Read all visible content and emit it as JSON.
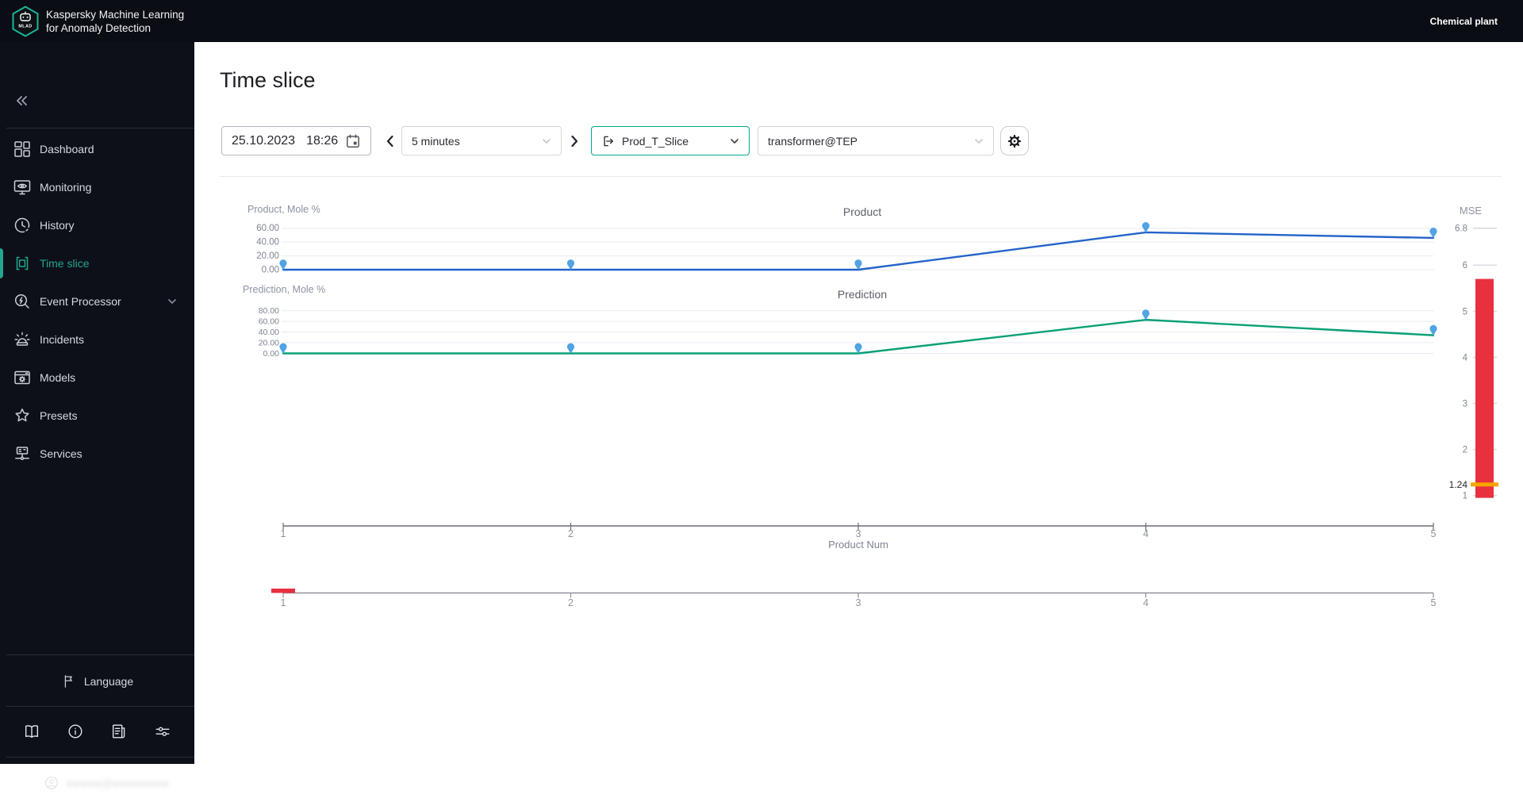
{
  "app": {
    "logo_text": "MLAD",
    "title_line1": "Kaspersky Machine Learning",
    "title_line2": "for Anomaly Detection",
    "tenant": "Chemical plant"
  },
  "page": {
    "title": "Time slice"
  },
  "sidebar": {
    "items": [
      {
        "id": "dashboard",
        "label": "Dashboard",
        "icon": "dashboard",
        "active": false
      },
      {
        "id": "monitoring",
        "label": "Monitoring",
        "icon": "monitoring",
        "active": false
      },
      {
        "id": "history",
        "label": "History",
        "icon": "history",
        "active": false
      },
      {
        "id": "time-slice",
        "label": "Time slice",
        "icon": "timeslice",
        "active": true
      },
      {
        "id": "event-processor",
        "label": "Event Processor",
        "icon": "eventproc",
        "active": false,
        "has_submenu": true
      },
      {
        "id": "incidents",
        "label": "Incidents",
        "icon": "incidents",
        "active": false
      },
      {
        "id": "models",
        "label": "Models",
        "icon": "models",
        "active": false
      },
      {
        "id": "presets",
        "label": "Presets",
        "icon": "presets",
        "active": false
      },
      {
        "id": "services",
        "label": "Services",
        "icon": "services",
        "active": false
      }
    ],
    "language_label": "Language",
    "footer_icons": [
      {
        "id": "documentation",
        "icon": "book"
      },
      {
        "id": "about",
        "icon": "info"
      },
      {
        "id": "reports",
        "icon": "news"
      },
      {
        "id": "preferences",
        "icon": "sliders"
      }
    ],
    "user_email_redacted": "●●●●●@●●●●●●●●"
  },
  "toolbar": {
    "date": "25.10.2023",
    "time": "18:26",
    "interval_value": "5 minutes",
    "slice_value": "Prod_T_Slice",
    "model_value": "transformer@TEP"
  },
  "colors": {
    "accent": "#24a68f",
    "accent_border": "#00a88e",
    "line_blue": "#2363c8",
    "marker_blue": "#50a3e4",
    "line_green": "#08a075",
    "bar_red": "#e8303e",
    "marker_orange": "#f7a500",
    "topbar_bg": "#0a0d13",
    "sidebar_bg": "#0d1018"
  },
  "chart_data": [
    {
      "type": "line",
      "title": "Product",
      "ylabel": "Product, Mole %",
      "x": [
        1,
        2,
        3,
        4,
        5
      ],
      "values": [
        0,
        0,
        0,
        54,
        46
      ],
      "yticks": [
        0,
        20,
        40,
        60
      ],
      "ylim": [
        0,
        63
      ],
      "tick_decimals": 2,
      "line_color": "#2363c8",
      "marker_color": "#50a3e4",
      "grid": true
    },
    {
      "type": "line",
      "title": "Prediction",
      "ylabel": "Prediction, Mole %",
      "x": [
        1,
        2,
        3,
        4,
        5
      ],
      "values": [
        0,
        0,
        0,
        63,
        34
      ],
      "yticks": [
        0,
        20,
        40,
        60,
        80
      ],
      "ylim": [
        0,
        84
      ],
      "tick_decimals": 2,
      "line_color": "#08a075",
      "marker_color": "#50a3e4",
      "grid": true
    },
    {
      "type": "indicator",
      "title": "MSE",
      "tick_labels": [
        "6.8",
        "6",
        "5",
        "4",
        "3",
        "2",
        "1"
      ],
      "tick_values": [
        6.8,
        6,
        5,
        4,
        3,
        2,
        1
      ],
      "bar": {
        "from": 0.95,
        "to": 5.7,
        "color": "#e8303e"
      },
      "current": {
        "value": 1.24,
        "label": "1.24",
        "color": "#f7a500"
      }
    },
    {
      "type": "xaxis",
      "label": "Product Num",
      "ticks": [
        1,
        2,
        3,
        4,
        5
      ]
    },
    {
      "type": "navigator",
      "ticks": [
        1,
        2,
        3,
        4,
        5
      ],
      "selected": {
        "at": 1,
        "color": "#e8303e"
      }
    }
  ]
}
